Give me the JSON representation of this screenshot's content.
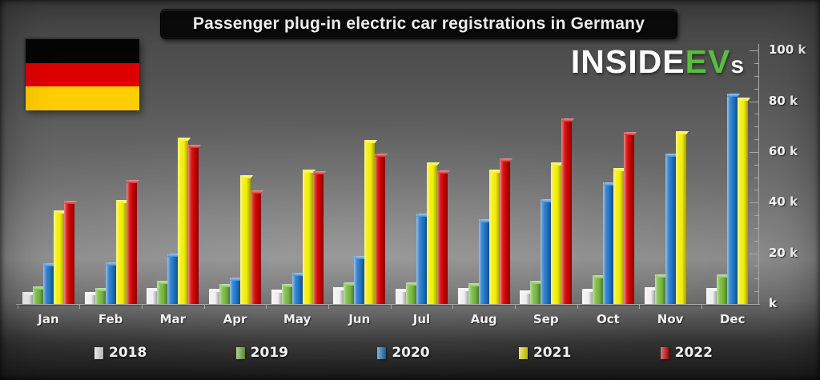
{
  "title": "Passenger plug-in electric car registrations in Germany",
  "logo": {
    "part1": "INSIDE",
    "part2": "EV",
    "part3": "s",
    "accent_color": "#5abd3e"
  },
  "flag": {
    "country": "germany",
    "stripe_colors": [
      "#050505",
      "#dd0000",
      "#ffce00"
    ]
  },
  "chart_data": {
    "type": "bar",
    "title": "Passenger plug-in electric car registrations in Germany",
    "unit": "thousands of registrations",
    "categories": [
      "Jan",
      "Feb",
      "Mar",
      "Apr",
      "May",
      "Jun",
      "Jul",
      "Aug",
      "Sep",
      "Oct",
      "Nov",
      "Dec"
    ],
    "series": [
      {
        "name": "2018",
        "color": "#efefef",
        "values": [
          4.7,
          4.8,
          6.3,
          6.1,
          5.7,
          6.7,
          5.9,
          6.4,
          5.3,
          6.1,
          6.5,
          6.2
        ]
      },
      {
        "name": "2019",
        "color": "#76b83e",
        "values": [
          6.8,
          6.4,
          9.3,
          7.8,
          8.0,
          8.5,
          8.5,
          8.1,
          9.1,
          11.3,
          11.8,
          11.6
        ]
      },
      {
        "name": "2020",
        "color": "#1e76c8",
        "values": [
          16.1,
          16.5,
          19.8,
          10.3,
          12.4,
          18.9,
          35.8,
          33.4,
          41.3,
          48.0,
          59.5,
          83.1
        ]
      },
      {
        "name": "2021",
        "color": "#f2ee00",
        "values": [
          36.9,
          41.1,
          65.7,
          50.8,
          53.0,
          64.7,
          55.8,
          53.0,
          55.8,
          53.7,
          68.2,
          81.3
        ]
      },
      {
        "name": "2022",
        "color": "#cd0000",
        "values": [
          40.7,
          49.0,
          62.7,
          44.9,
          52.4,
          59.3,
          52.8,
          57.5,
          73.1,
          67.9,
          null,
          null
        ]
      }
    ],
    "ylim": [
      0,
      100
    ],
    "ytick_major_step": 20,
    "ytick_minor_step": 5,
    "ytick_labels": [
      "k",
      "20 k",
      "40 k",
      "60 k",
      "80 k",
      "100 k"
    ],
    "axis_side": "right",
    "grid": false,
    "legend_position": "bottom"
  }
}
